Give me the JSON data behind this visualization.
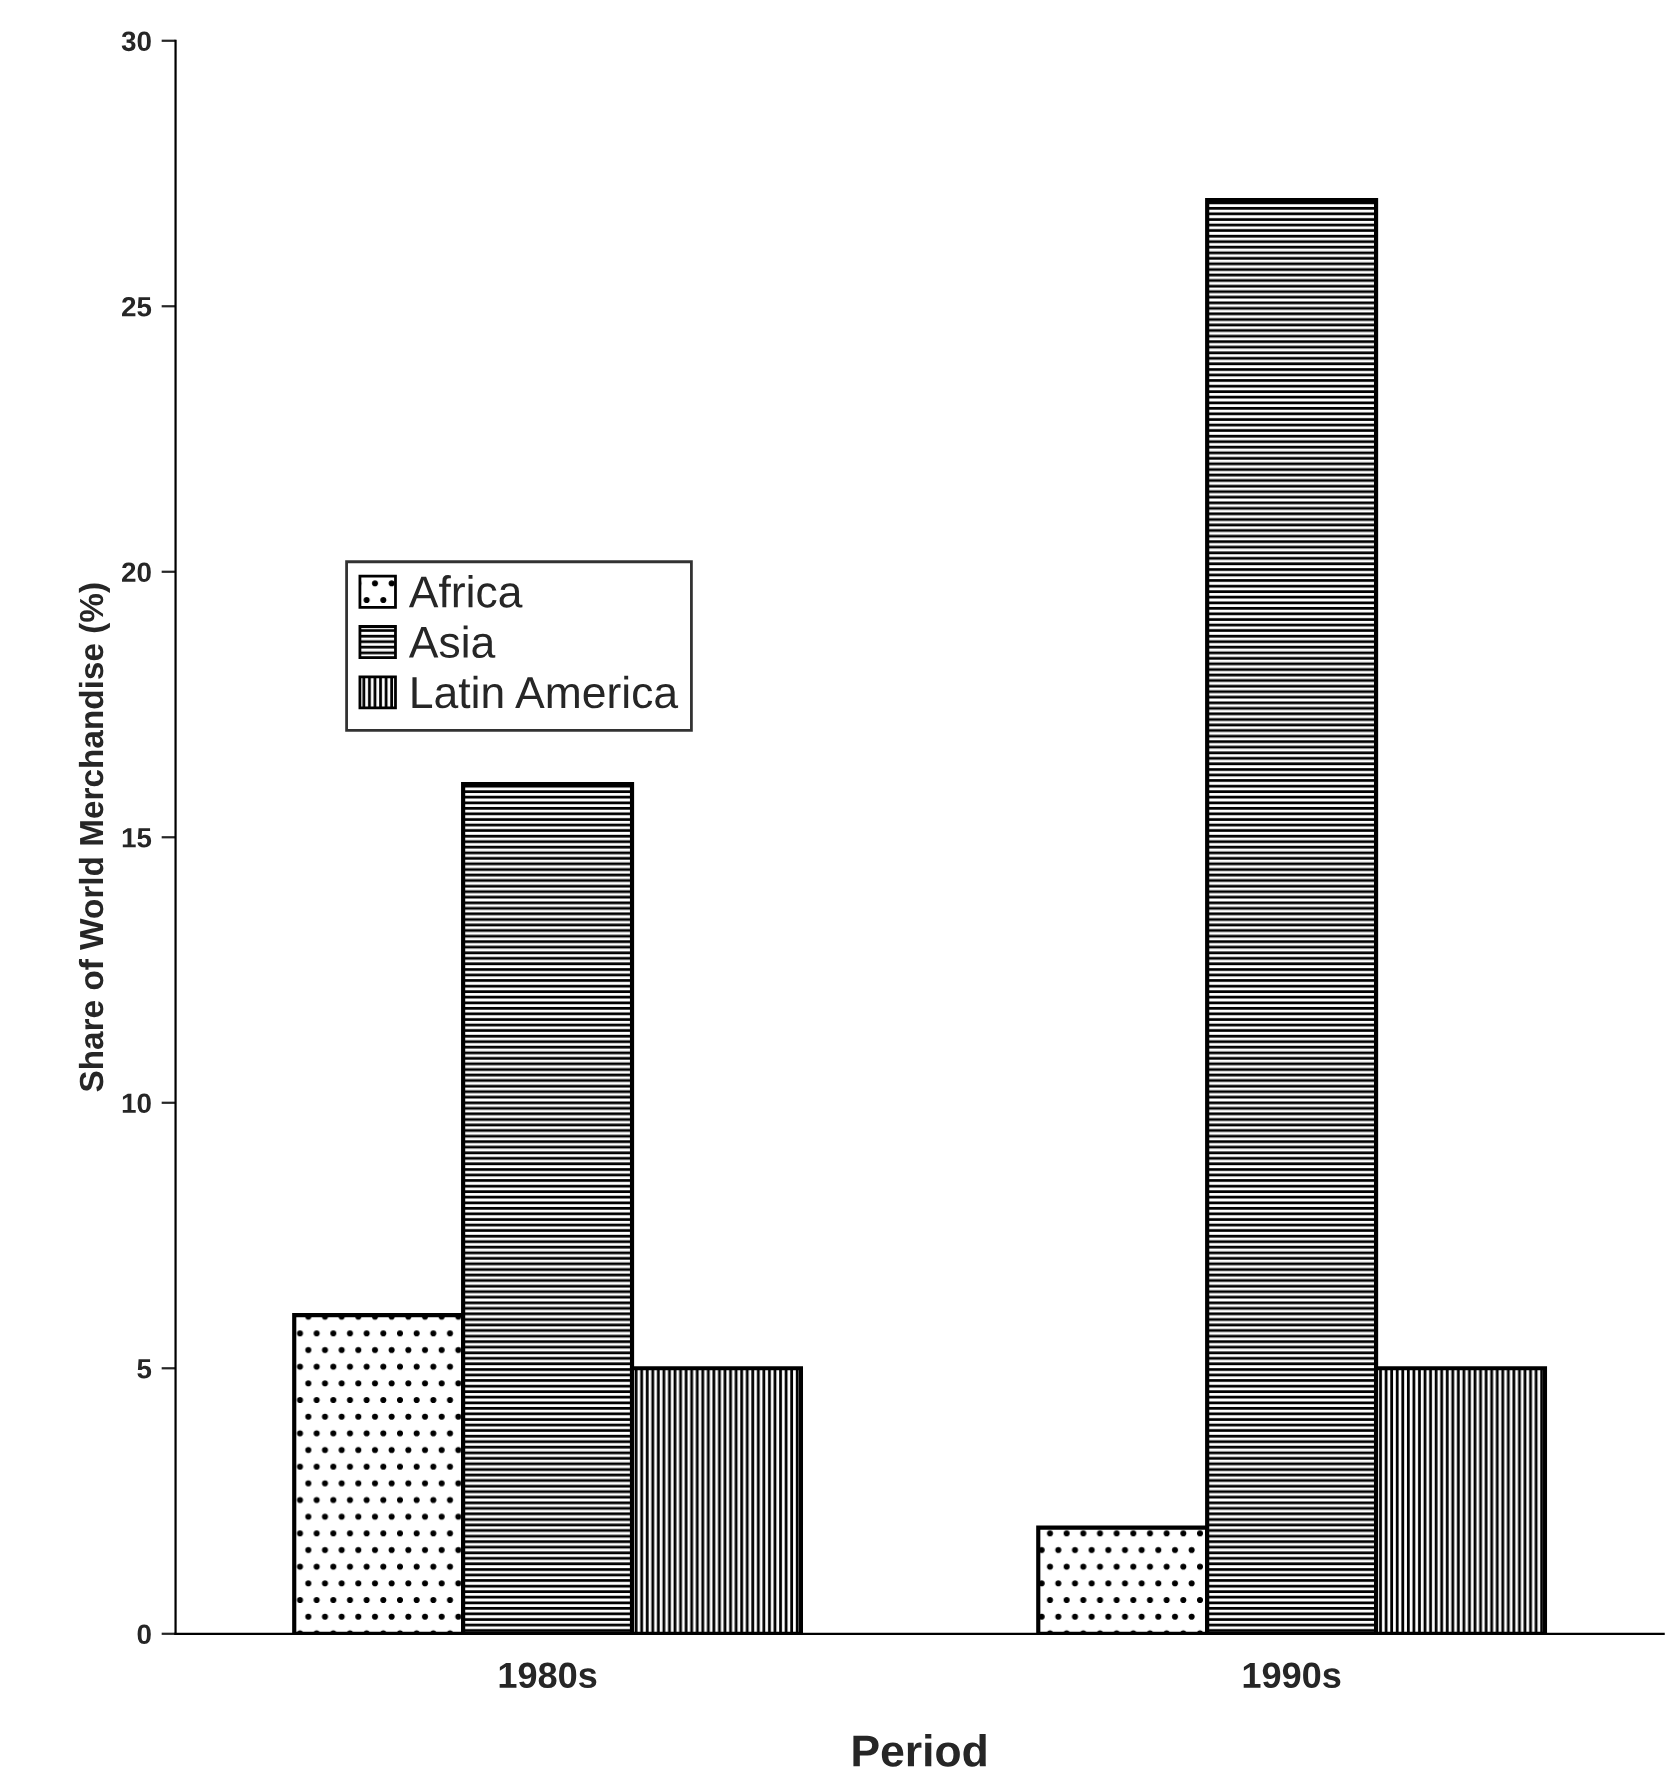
{
  "chart_data": {
    "type": "bar",
    "xlabel": "Period",
    "ylabel": "Share of World Merchandise (%)",
    "categories": [
      "1980s",
      "1990s"
    ],
    "series": [
      {
        "name": "Africa",
        "color": "#000000",
        "values": [
          6,
          2
        ]
      },
      {
        "name": "Asia",
        "color": "#000000",
        "values": [
          16,
          27
        ]
      },
      {
        "name": "Latin America",
        "color": "#000000",
        "values": [
          5,
          5
        ]
      }
    ],
    "ylim": [
      0,
      30
    ],
    "yticks": [
      0,
      5,
      10,
      15,
      20,
      25,
      30
    ],
    "grid": false,
    "legend": "left"
  }
}
